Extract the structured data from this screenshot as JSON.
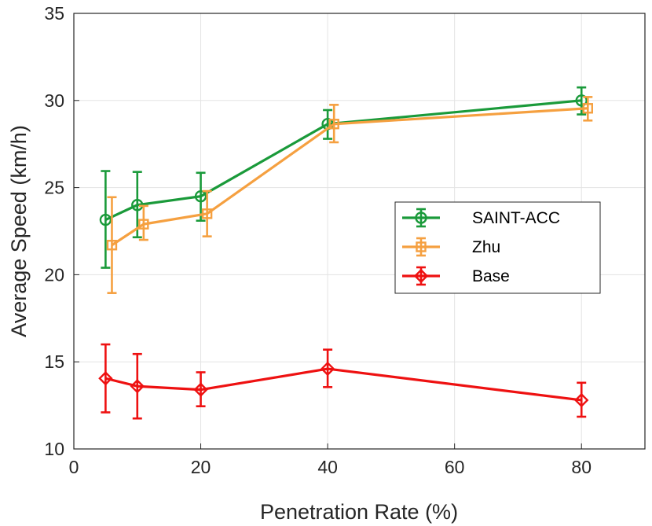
{
  "chart_data": {
    "type": "line",
    "title": "",
    "xlabel": "Penetration Rate (%)",
    "ylabel": "Average Speed (km/h)",
    "xlim": [
      0,
      90
    ],
    "ylim": [
      10,
      35
    ],
    "xticks": [
      0,
      20,
      40,
      60,
      80
    ],
    "yticks": [
      10,
      15,
      20,
      25,
      30,
      35
    ],
    "xtick_labels": [
      "0",
      "20",
      "40",
      "60",
      "80"
    ],
    "ytick_labels": [
      "10",
      "15",
      "20",
      "25",
      "30",
      "35"
    ],
    "grid": true,
    "legend_position": "center-right",
    "series": [
      {
        "name": "SAINT-ACC",
        "color": "#1a9a3a",
        "marker": "circle",
        "x": [
          5,
          10,
          20,
          40,
          80
        ],
        "y": [
          23.15,
          24.0,
          24.5,
          28.65,
          30.0
        ],
        "err_low": [
          20.4,
          22.15,
          23.1,
          27.8,
          29.2
        ],
        "err_high": [
          25.95,
          25.9,
          25.85,
          29.45,
          30.75
        ]
      },
      {
        "name": "Zhu",
        "color": "#f5a040",
        "marker": "square",
        "x": [
          6,
          11,
          21,
          41,
          81
        ],
        "y": [
          21.7,
          22.9,
          23.5,
          28.65,
          29.55
        ],
        "err_low": [
          18.95,
          22.0,
          22.2,
          27.6,
          28.85
        ],
        "err_high": [
          24.45,
          23.95,
          24.8,
          29.75,
          30.2
        ]
      },
      {
        "name": "Base",
        "color": "#ee1111",
        "marker": "diamond",
        "x": [
          5,
          10,
          20,
          40,
          80
        ],
        "y": [
          14.05,
          13.6,
          13.4,
          14.6,
          12.8
        ],
        "err_low": [
          12.1,
          11.75,
          12.45,
          13.55,
          11.85
        ],
        "err_high": [
          16.0,
          15.45,
          14.4,
          15.7,
          13.8
        ]
      }
    ]
  }
}
